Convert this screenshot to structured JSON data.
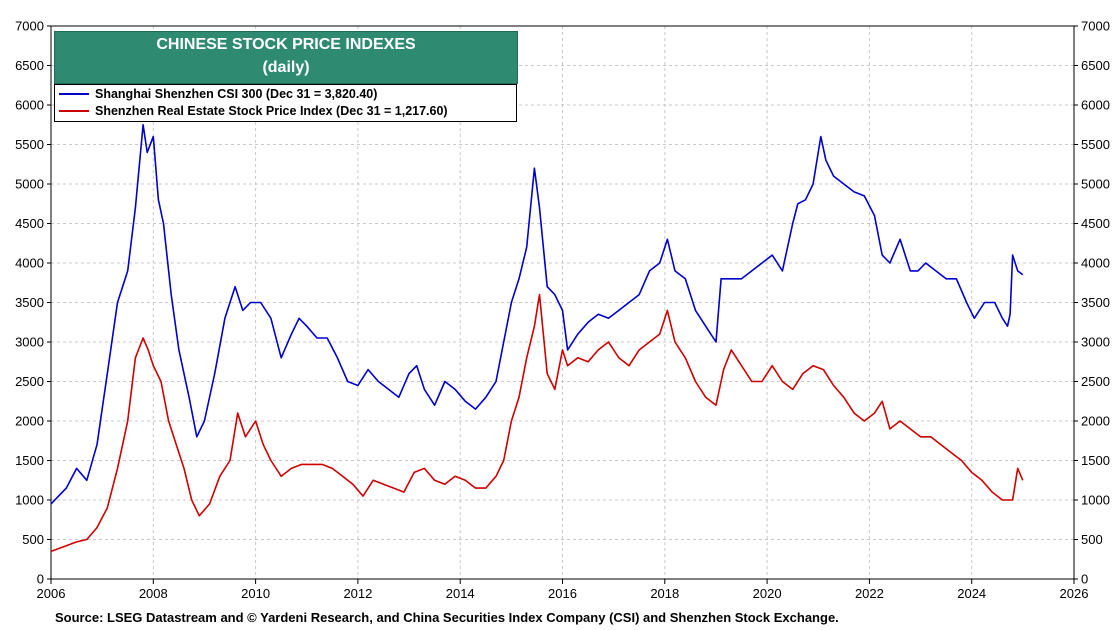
{
  "chart_data": {
    "type": "line",
    "title": "CHINESE STOCK PRICE INDEXES",
    "subtitle": "(daily)",
    "xlim": [
      2006,
      2026
    ],
    "ylim": [
      0,
      7000
    ],
    "x_ticks": [
      2006,
      2008,
      2010,
      2012,
      2014,
      2016,
      2018,
      2020,
      2022,
      2024,
      2026
    ],
    "y_ticks": [
      0,
      500,
      1000,
      1500,
      2000,
      2500,
      3000,
      3500,
      4000,
      4500,
      5000,
      5500,
      6000,
      6500,
      7000
    ],
    "y_axis_both_sides": true,
    "grid": true,
    "legend_position": "top-left",
    "source": "Source: LSEG Datastream and © Yardeni Research, and China Securities Index Company (CSI) and Shenzhen Stock Exchange.",
    "series": [
      {
        "name": "Shanghai Shenzhen CSI 300 (Dec 31 = 3,820.40)",
        "color": "#0000cc",
        "x": [
          2006.0,
          2006.3,
          2006.5,
          2006.7,
          2006.9,
          2007.1,
          2007.3,
          2007.5,
          2007.65,
          2007.8,
          2007.88,
          2008.0,
          2008.1,
          2008.2,
          2008.35,
          2008.5,
          2008.7,
          2008.85,
          2009.0,
          2009.2,
          2009.4,
          2009.6,
          2009.75,
          2009.9,
          2010.1,
          2010.3,
          2010.5,
          2010.7,
          2010.85,
          2011.0,
          2011.2,
          2011.4,
          2011.6,
          2011.8,
          2012.0,
          2012.2,
          2012.4,
          2012.6,
          2012.8,
          2013.0,
          2013.15,
          2013.3,
          2013.5,
          2013.7,
          2013.9,
          2014.1,
          2014.3,
          2014.5,
          2014.7,
          2014.85,
          2015.0,
          2015.15,
          2015.3,
          2015.45,
          2015.55,
          2015.7,
          2015.85,
          2016.0,
          2016.1,
          2016.3,
          2016.5,
          2016.7,
          2016.9,
          2017.1,
          2017.3,
          2017.5,
          2017.7,
          2017.9,
          2018.05,
          2018.2,
          2018.4,
          2018.6,
          2018.8,
          2019.0,
          2019.1,
          2019.3,
          2019.5,
          2019.7,
          2019.9,
          2020.1,
          2020.3,
          2020.5,
          2020.6,
          2020.75,
          2020.9,
          2021.05,
          2021.15,
          2021.3,
          2021.5,
          2021.7,
          2021.9,
          2022.1,
          2022.25,
          2022.4,
          2022.6,
          2022.8,
          2022.95,
          2023.1,
          2023.3,
          2023.5,
          2023.7,
          2023.9,
          2024.05,
          2024.25,
          2024.45,
          2024.6,
          2024.7,
          2024.75,
          2024.8,
          2024.9,
          2025.0
        ],
        "values": [
          950,
          1150,
          1400,
          1250,
          1700,
          2600,
          3500,
          3900,
          4700,
          5750,
          5400,
          5600,
          4800,
          4500,
          3600,
          2900,
          2300,
          1800,
          2000,
          2600,
          3300,
          3700,
          3400,
          3500,
          3500,
          3300,
          2800,
          3100,
          3300,
          3200,
          3050,
          3050,
          2800,
          2500,
          2450,
          2650,
          2500,
          2400,
          2300,
          2600,
          2700,
          2400,
          2200,
          2500,
          2400,
          2250,
          2150,
          2300,
          2500,
          3000,
          3500,
          3800,
          4200,
          5200,
          4700,
          3700,
          3600,
          3400,
          2900,
          3100,
          3250,
          3350,
          3300,
          3400,
          3500,
          3600,
          3900,
          4000,
          4300,
          3900,
          3800,
          3400,
          3200,
          3000,
          3800,
          3800,
          3800,
          3900,
          4000,
          4100,
          3900,
          4500,
          4750,
          4800,
          5000,
          5600,
          5300,
          5100,
          5000,
          4900,
          4850,
          4600,
          4100,
          4000,
          4300,
          3900,
          3900,
          4000,
          3900,
          3800,
          3800,
          3500,
          3300,
          3500,
          3500,
          3300,
          3200,
          3350,
          4100,
          3900,
          3850
        ]
      },
      {
        "name": "Shenzhen Real Estate Stock Price Index (Dec 31 = 1,217.60)",
        "color": "#cc0000",
        "x": [
          2006.0,
          2006.3,
          2006.5,
          2006.7,
          2006.9,
          2007.1,
          2007.3,
          2007.5,
          2007.65,
          2007.8,
          2007.9,
          2008.0,
          2008.15,
          2008.3,
          2008.45,
          2008.6,
          2008.75,
          2008.9,
          2009.1,
          2009.3,
          2009.5,
          2009.65,
          2009.8,
          2010.0,
          2010.15,
          2010.3,
          2010.5,
          2010.7,
          2010.9,
          2011.1,
          2011.3,
          2011.5,
          2011.7,
          2011.9,
          2012.1,
          2012.3,
          2012.5,
          2012.7,
          2012.9,
          2013.1,
          2013.3,
          2013.5,
          2013.7,
          2013.9,
          2014.1,
          2014.3,
          2014.5,
          2014.7,
          2014.85,
          2015.0,
          2015.15,
          2015.3,
          2015.45,
          2015.55,
          2015.7,
          2015.85,
          2016.0,
          2016.1,
          2016.3,
          2016.5,
          2016.7,
          2016.9,
          2017.1,
          2017.3,
          2017.5,
          2017.7,
          2017.9,
          2018.05,
          2018.2,
          2018.4,
          2018.6,
          2018.8,
          2019.0,
          2019.15,
          2019.3,
          2019.5,
          2019.7,
          2019.9,
          2020.1,
          2020.3,
          2020.5,
          2020.7,
          2020.9,
          2021.1,
          2021.3,
          2021.5,
          2021.7,
          2021.9,
          2022.1,
          2022.25,
          2022.4,
          2022.6,
          2022.8,
          2023.0,
          2023.2,
          2023.4,
          2023.6,
          2023.8,
          2024.0,
          2024.2,
          2024.4,
          2024.6,
          2024.7,
          2024.8,
          2024.9,
          2025.0
        ],
        "values": [
          350,
          420,
          470,
          500,
          650,
          900,
          1400,
          2000,
          2800,
          3050,
          2900,
          2700,
          2500,
          2000,
          1700,
          1400,
          1000,
          800,
          950,
          1300,
          1500,
          2100,
          1800,
          2000,
          1700,
          1500,
          1300,
          1400,
          1450,
          1450,
          1450,
          1400,
          1300,
          1200,
          1050,
          1250,
          1200,
          1150,
          1100,
          1350,
          1400,
          1250,
          1200,
          1300,
          1250,
          1150,
          1150,
          1300,
          1500,
          2000,
          2300,
          2800,
          3200,
          3600,
          2600,
          2400,
          2900,
          2700,
          2800,
          2750,
          2900,
          3000,
          2800,
          2700,
          2900,
          3000,
          3100,
          3400,
          3000,
          2800,
          2500,
          2300,
          2200,
          2650,
          2900,
          2700,
          2500,
          2500,
          2700,
          2500,
          2400,
          2600,
          2700,
          2650,
          2450,
          2300,
          2100,
          2000,
          2100,
          2250,
          1900,
          2000,
          1900,
          1800,
          1800,
          1700,
          1600,
          1500,
          1350,
          1250,
          1100,
          1000,
          1000,
          1000,
          1400,
          1250
        ]
      }
    ]
  }
}
